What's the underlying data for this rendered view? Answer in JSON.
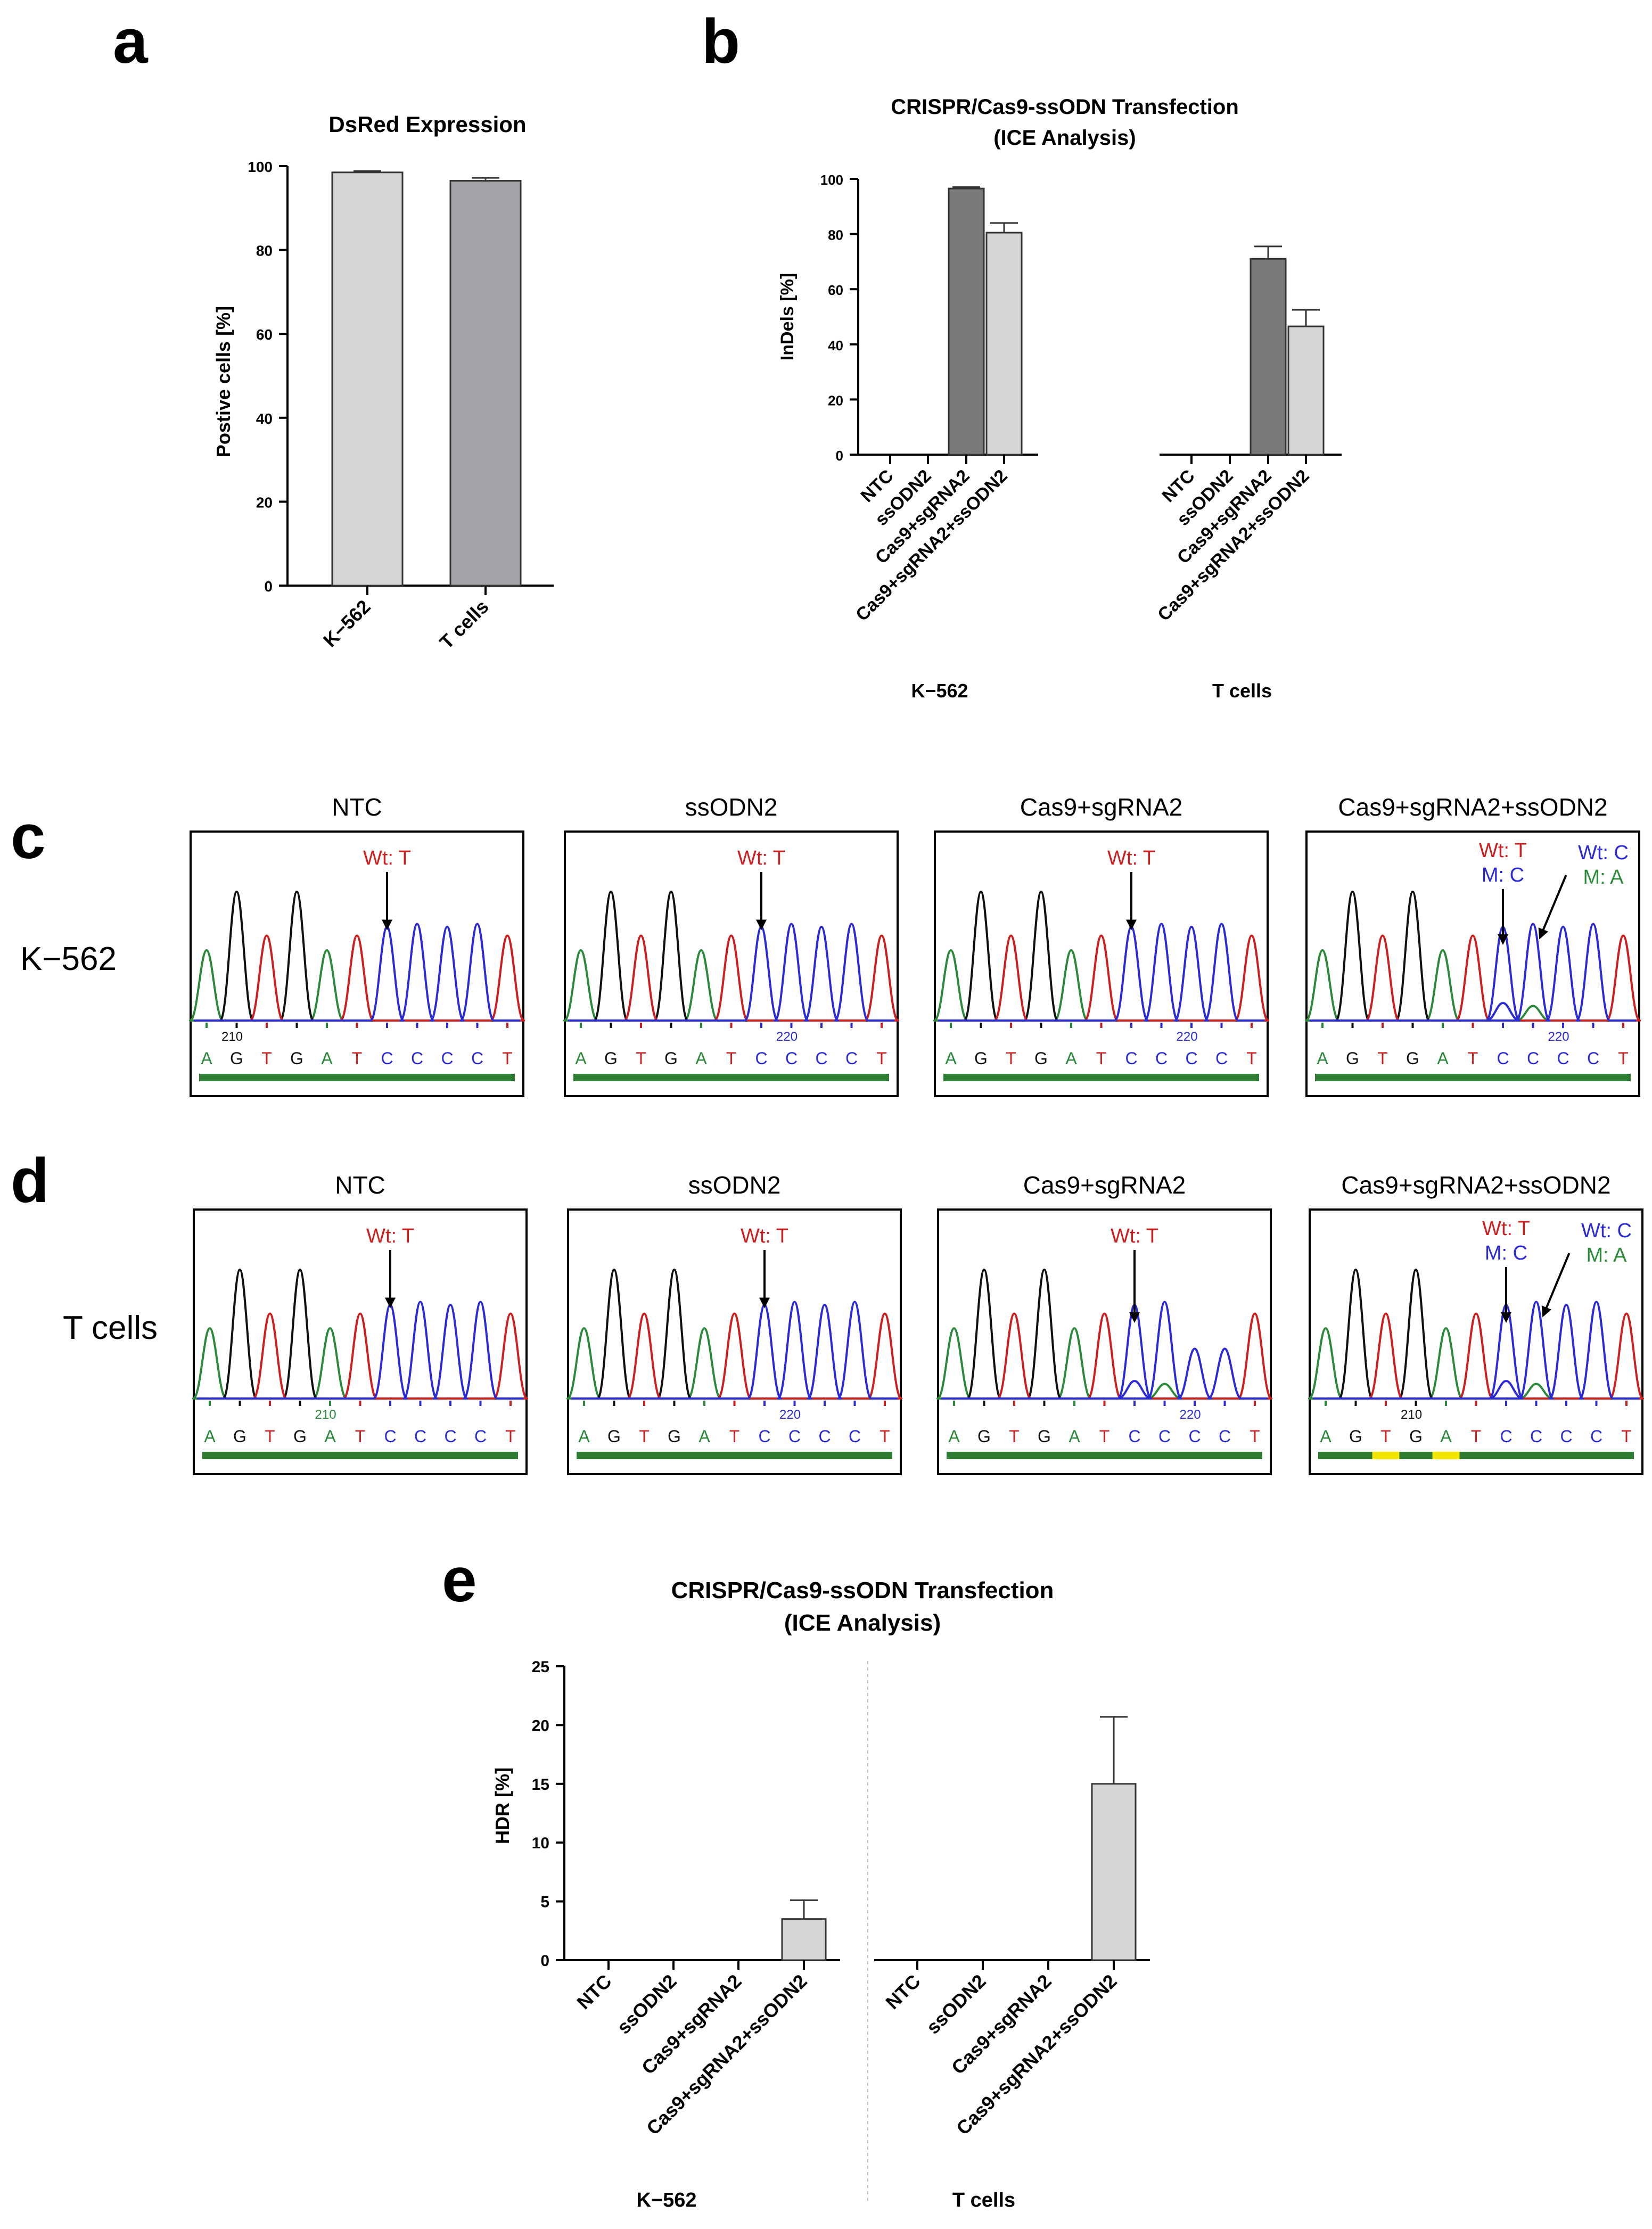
{
  "panel_letters": {
    "a": "a",
    "b": "b",
    "c": "c",
    "d": "d",
    "e": "e"
  },
  "colors": {
    "bar_light": "#d6d6d6",
    "bar_mid": "#a3a3a8",
    "bar_dark": "#7a7a7a",
    "base_A": "#2a8a3a",
    "base_G": "#111111",
    "base_T": "#cc1f1f",
    "base_C": "#2b2bd6",
    "quality_bar": "#2e7d32",
    "quality_low": "#f2e600"
  },
  "chart_data": [
    {
      "id": "a",
      "type": "bar",
      "title": "DsRed Expression",
      "ylabel": "Postive cells [%]",
      "xlabel": "",
      "ylim": [
        0,
        100
      ],
      "yticks": [
        0,
        20,
        40,
        60,
        80,
        100
      ],
      "categories": [
        "K−562",
        "T cells"
      ],
      "values": [
        98.5,
        96.5
      ],
      "errors": [
        0.3,
        0.7
      ],
      "bar_colors": [
        "#d6d6d6",
        "#a3a3a8"
      ]
    },
    {
      "id": "b",
      "type": "bar",
      "title": "CRISPR/Cas9-ssODN Transfection",
      "subtitle": "(ICE Analysis)",
      "ylabel": "InDels [%]",
      "xlabel": "",
      "ylim": [
        0,
        100
      ],
      "yticks": [
        0,
        20,
        40,
        60,
        80,
        100
      ],
      "groups": [
        "K−562",
        "T cells"
      ],
      "categories": [
        "NTC",
        "ssODN2",
        "Cas9+sgRNA2",
        "Cas9+sgRNA2+ssODN2"
      ],
      "series": [
        {
          "name": "K−562",
          "values": [
            0,
            0,
            96.5,
            80.5
          ],
          "errors": [
            0,
            0,
            0.5,
            3.5
          ]
        },
        {
          "name": "T cells",
          "values": [
            0,
            0,
            71,
            46.5
          ],
          "errors": [
            0,
            0,
            4.5,
            6
          ]
        }
      ]
    },
    {
      "id": "e",
      "type": "bar",
      "title": "CRISPR/Cas9-ssODN Transfection",
      "subtitle": "(ICE Analysis)",
      "ylabel": "HDR [%]",
      "xlabel": "",
      "ylim": [
        0,
        25
      ],
      "yticks": [
        0,
        5,
        10,
        15,
        20,
        25
      ],
      "groups": [
        "K−562",
        "T cells"
      ],
      "categories": [
        "NTC",
        "ssODN2",
        "Cas9+sgRNA2",
        "Cas9+sgRNA2+ssODN2"
      ],
      "series": [
        {
          "name": "K−562",
          "values": [
            0,
            0,
            0,
            3.5
          ],
          "errors": [
            0,
            0,
            0,
            1.6
          ]
        },
        {
          "name": "T cells",
          "values": [
            0,
            0,
            0,
            15
          ],
          "errors": [
            0,
            0,
            0,
            5.7
          ]
        }
      ]
    }
  ],
  "chromatograms": {
    "rows": [
      {
        "panel": "c",
        "row_label": "K−562"
      },
      {
        "panel": "d",
        "row_label": "T cells"
      }
    ],
    "panels": [
      {
        "row": 0,
        "title": "NTC",
        "bases": "AGTGATCCCCT",
        "position_label": "210",
        "position_after": 1,
        "annotations": [
          {
            "lines": [
              {
                "text": "Wt: T",
                "color": "#cc1f1f"
              }
            ],
            "target": 6
          }
        ],
        "low_quality": [],
        "mixed": false
      },
      {
        "row": 0,
        "title": "ssODN2",
        "bases": "AGTGATCCCCT",
        "position_label": "220",
        "position_after": 7,
        "annotations": [
          {
            "lines": [
              {
                "text": "Wt: T",
                "color": "#cc1f1f"
              }
            ],
            "target": 6
          }
        ],
        "low_quality": [],
        "mixed": false
      },
      {
        "row": 0,
        "title": "Cas9+sgRNA2",
        "bases": "AGTGATCCCCT",
        "position_label": "220",
        "position_after": 8,
        "annotations": [
          {
            "lines": [
              {
                "text": "Wt: T",
                "color": "#cc1f1f"
              }
            ],
            "target": 6
          }
        ],
        "low_quality": [],
        "mixed": false
      },
      {
        "row": 0,
        "title": "Cas9+sgRNA2+ssODN2",
        "bases": "AGTGATCCCCT",
        "position_label": "220",
        "position_after": 8,
        "annotations": [
          {
            "lines": [
              {
                "text": "Wt: T",
                "color": "#cc1f1f"
              },
              {
                "text": "M: C",
                "color": "#2b2bd6"
              }
            ],
            "target": 6
          },
          {
            "lines": [
              {
                "text": "Wt: C",
                "color": "#2b2bd6"
              },
              {
                "text": "M: A",
                "color": "#2a8a3a"
              }
            ],
            "target": 7
          }
        ],
        "low_quality": [],
        "mixed": true
      },
      {
        "row": 1,
        "title": "NTC",
        "bases": "AGTGATCCCCT",
        "position_label": "210",
        "position_after": 4,
        "annotations": [
          {
            "lines": [
              {
                "text": "Wt: T",
                "color": "#cc1f1f"
              }
            ],
            "target": 6
          }
        ],
        "low_quality": [],
        "mixed": false
      },
      {
        "row": 1,
        "title": "ssODN2",
        "bases": "AGTGATCCCCT",
        "position_label": "220",
        "position_after": 7,
        "annotations": [
          {
            "lines": [
              {
                "text": "Wt: T",
                "color": "#cc1f1f"
              }
            ],
            "target": 6
          }
        ],
        "low_quality": [],
        "mixed": false
      },
      {
        "row": 1,
        "title": "Cas9+sgRNA2",
        "bases": "AGTGATCCCCT",
        "position_label": "220",
        "position_after": 8,
        "annotations": [
          {
            "lines": [
              {
                "text": "Wt: T",
                "color": "#cc1f1f"
              }
            ],
            "target": 6
          }
        ],
        "low_quality": [],
        "mixed": true
      },
      {
        "row": 1,
        "title": "Cas9+sgRNA2+ssODN2",
        "bases": "AGTGATCCCCT",
        "position_label": "210",
        "position_after": 3,
        "annotations": [
          {
            "lines": [
              {
                "text": "Wt: T",
                "color": "#cc1f1f"
              },
              {
                "text": "M: C",
                "color": "#2b2bd6"
              }
            ],
            "target": 6
          },
          {
            "lines": [
              {
                "text": "Wt: C",
                "color": "#2b2bd6"
              },
              {
                "text": "M: A",
                "color": "#2a8a3a"
              }
            ],
            "target": 7
          }
        ],
        "low_quality": [
          2,
          4
        ],
        "mixed": true
      }
    ]
  }
}
